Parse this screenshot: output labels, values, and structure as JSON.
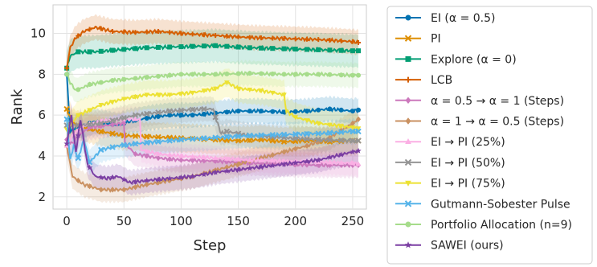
{
  "chart_data": {
    "type": "line",
    "xlabel": "Step",
    "ylabel": "Rank",
    "xlim": [
      -12,
      262
    ],
    "ylim": [
      1.4,
      11.4
    ],
    "xticks": [
      0,
      50,
      100,
      150,
      200,
      250
    ],
    "yticks": [
      2,
      4,
      6,
      8,
      10
    ],
    "grid": true,
    "legend_placement": "outside-right",
    "series": [
      {
        "name": "EI (α = 0.5)",
        "color": "#0173b2",
        "marker": "circle",
        "x": [
          0,
          3,
          8,
          15,
          25,
          35,
          45,
          55,
          65,
          75,
          90,
          110,
          130,
          150,
          170,
          190,
          210,
          230,
          250,
          255
        ],
        "y": [
          8.0,
          5.2,
          5.4,
          5.5,
          5.7,
          5.6,
          5.5,
          5.7,
          5.8,
          5.9,
          6.0,
          6.0,
          6.1,
          6.2,
          6.2,
          6.15,
          6.2,
          6.3,
          6.2,
          6.25
        ],
        "band": 0.6
      },
      {
        "name": "PI",
        "color": "#de8f05",
        "marker": "x",
        "x": [
          0,
          5,
          15,
          30,
          50,
          70,
          90,
          110,
          130,
          150,
          170,
          190,
          210,
          230,
          250,
          255
        ],
        "y": [
          6.3,
          5.6,
          5.4,
          5.2,
          5.0,
          4.95,
          4.9,
          4.85,
          4.8,
          4.75,
          4.8,
          4.7,
          4.75,
          4.7,
          4.75,
          4.75
        ],
        "band": 0.7
      },
      {
        "name": "Explore (α = 0)",
        "color": "#029e73",
        "marker": "square",
        "x": [
          0,
          3,
          10,
          25,
          45,
          70,
          100,
          130,
          160,
          190,
          220,
          250,
          255
        ],
        "y": [
          8.3,
          8.9,
          9.1,
          9.1,
          9.2,
          9.3,
          9.35,
          9.4,
          9.3,
          9.25,
          9.2,
          9.15,
          9.15
        ],
        "band": 0.8
      },
      {
        "name": "LCB",
        "color": "#d55e00",
        "marker": "plus",
        "x": [
          0,
          3,
          8,
          15,
          25,
          40,
          60,
          80,
          100,
          130,
          160,
          190,
          220,
          250,
          255
        ],
        "y": [
          8.3,
          9.3,
          9.8,
          10.1,
          10.3,
          10.1,
          10.05,
          10.1,
          10.0,
          9.9,
          9.8,
          9.75,
          9.7,
          9.6,
          9.55
        ],
        "band": 0.6
      },
      {
        "name": "α = 0.5 → α = 1 (Steps)",
        "color": "#cc78bc",
        "marker": "diamond",
        "x": [
          0,
          5,
          10,
          20,
          35,
          50,
          51,
          60,
          80,
          100,
          130,
          160,
          190,
          220,
          250,
          255
        ],
        "y": [
          4.8,
          4.6,
          5.0,
          5.4,
          5.5,
          5.6,
          4.6,
          4.1,
          3.9,
          3.8,
          3.75,
          3.65,
          3.6,
          3.55,
          3.55,
          3.55
        ],
        "band": 0.6
      },
      {
        "name": "α = 1 → α = 0.5 (Steps)",
        "color": "#ca9161",
        "marker": "diamond",
        "x": [
          0,
          5,
          15,
          30,
          50,
          70,
          90,
          110,
          130,
          150,
          170,
          190,
          210,
          230,
          250,
          255
        ],
        "y": [
          4.5,
          3.0,
          2.6,
          2.35,
          2.35,
          2.6,
          2.8,
          3.0,
          3.3,
          3.6,
          3.9,
          4.2,
          4.5,
          4.9,
          5.6,
          5.8
        ],
        "band": 0.6
      },
      {
        "name": "EI → PI (25%)",
        "color": "#fbafe4",
        "marker": "triangle-up",
        "x": [
          0,
          5,
          15,
          30,
          50,
          64,
          65,
          80,
          100,
          130,
          160,
          190,
          220,
          250,
          255
        ],
        "y": [
          4.5,
          5.0,
          5.5,
          5.7,
          5.8,
          5.8,
          4.3,
          4.1,
          4.0,
          3.9,
          3.8,
          3.75,
          3.7,
          3.65,
          3.6
        ],
        "band": 0.6
      },
      {
        "name": "EI → PI (50%)",
        "color": "#949494",
        "marker": "x",
        "x": [
          0,
          10,
          30,
          60,
          90,
          120,
          128,
          130,
          135,
          140,
          160,
          190,
          220,
          250,
          255
        ],
        "y": [
          5.5,
          5.5,
          5.6,
          6.0,
          6.2,
          6.3,
          6.3,
          5.9,
          5.1,
          5.2,
          5.0,
          4.9,
          4.8,
          4.75,
          4.75
        ],
        "band": 0.6
      },
      {
        "name": "EI → PI (75%)",
        "color": "#ece133",
        "marker": "triangle-down",
        "x": [
          0,
          10,
          30,
          50,
          70,
          90,
          110,
          130,
          140,
          150,
          170,
          190,
          192,
          200,
          220,
          250,
          255
        ],
        "y": [
          5.3,
          6.0,
          6.5,
          6.8,
          7.0,
          7.0,
          7.1,
          7.3,
          7.6,
          7.3,
          7.2,
          7.0,
          6.2,
          5.9,
          5.6,
          5.4,
          5.35
        ],
        "band": 0.7
      },
      {
        "name": "Gutmann-Sobester Pulse",
        "color": "#56b4e9",
        "marker": "x",
        "x": [
          0,
          3,
          6,
          10,
          15,
          20,
          30,
          45,
          60,
          80,
          100,
          130,
          160,
          190,
          220,
          250,
          255
        ],
        "y": [
          5.8,
          3.8,
          4.5,
          3.9,
          4.8,
          3.7,
          4.3,
          4.5,
          4.6,
          4.7,
          4.8,
          4.9,
          5.0,
          5.05,
          5.1,
          5.2,
          5.2
        ],
        "band": 0.6
      },
      {
        "name": "Portfolio Allocation (n=9)",
        "color": "#a6dc8b",
        "marker": "circle",
        "x": [
          0,
          3,
          8,
          20,
          40,
          60,
          80,
          100,
          130,
          160,
          190,
          220,
          250,
          255
        ],
        "y": [
          8.0,
          7.6,
          7.2,
          7.5,
          7.7,
          7.8,
          7.9,
          8.0,
          8.0,
          8.05,
          8.0,
          8.0,
          7.95,
          7.95
        ],
        "band": 0.6
      },
      {
        "name": "SAWEI (ours)",
        "color": "#7b3fa3",
        "marker": "star",
        "x": [
          0,
          4,
          8,
          12,
          18,
          25,
          35,
          45,
          55,
          70,
          90,
          110,
          130,
          160,
          190,
          220,
          250,
          255
        ],
        "y": [
          4.6,
          6.0,
          4.2,
          5.8,
          3.6,
          3.0,
          2.9,
          3.0,
          2.7,
          2.8,
          2.9,
          3.0,
          3.2,
          3.4,
          3.6,
          3.8,
          4.2,
          4.25
        ],
        "band": 0.6
      }
    ]
  }
}
